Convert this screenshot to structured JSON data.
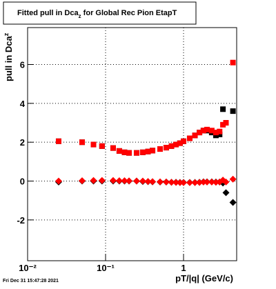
{
  "chart_data": {
    "type": "scatter",
    "title": {
      "main": "Fitted pull in Dca",
      "sub": "z",
      "rest": " for Global Rec Pion EtapT"
    },
    "y_label": {
      "main": "pull in Dca",
      "sub": "z"
    },
    "x_label": "pT/|q| (GeV/c)",
    "footer": "Fri Dec 31 15:47:28 2021",
    "xlog": true,
    "grid": true,
    "xlim": [
      0.01,
      4.8
    ],
    "ylim": [
      -4.1,
      7.9
    ],
    "xticks": [
      {
        "value": 0.01,
        "label": "10⁻²"
      },
      {
        "value": 0.1,
        "label": "10⁻¹"
      },
      1
    ],
    "yticks": [
      -2,
      0,
      2,
      4,
      6
    ],
    "x": [
      0.025,
      0.05,
      0.07,
      0.09,
      0.125,
      0.15,
      0.175,
      0.2,
      0.25,
      0.3,
      0.35,
      0.4,
      0.5,
      0.6,
      0.7,
      0.8,
      0.9,
      1.0,
      1.2,
      1.4,
      1.6,
      1.8,
      2.0,
      2.3,
      2.6,
      2.9,
      3.2,
      3.5,
      4.3
    ],
    "series": [
      {
        "color": "#000000",
        "marker": "square",
        "values": [
          2.05,
          2.0,
          1.88,
          1.8,
          1.7,
          1.55,
          1.48,
          1.45,
          1.45,
          1.48,
          1.52,
          1.57,
          1.65,
          1.72,
          1.8,
          1.88,
          1.95,
          2.05,
          2.2,
          2.35,
          2.5,
          2.6,
          2.6,
          2.5,
          2.35,
          2.4,
          3.7,
          3.0,
          3.6
        ]
      },
      {
        "color": "#000000",
        "marker": "diamond",
        "values": [
          -0.05,
          0.0,
          0.0,
          0.0,
          0.0,
          0.0,
          0.0,
          0.0,
          0.0,
          -0.02,
          -0.03,
          -0.04,
          -0.05,
          -0.05,
          -0.06,
          -0.06,
          -0.07,
          -0.07,
          -0.07,
          -0.07,
          -0.06,
          -0.04,
          -0.04,
          -0.04,
          -0.05,
          -0.05,
          -0.1,
          -0.6,
          -1.1
        ]
      },
      {
        "color": "#ff0000",
        "marker": "square",
        "values": [
          2.05,
          2.0,
          1.88,
          1.8,
          1.7,
          1.55,
          1.48,
          1.45,
          1.45,
          1.48,
          1.52,
          1.57,
          1.65,
          1.72,
          1.8,
          1.88,
          1.95,
          2.05,
          2.2,
          2.35,
          2.5,
          2.6,
          2.65,
          2.6,
          2.5,
          2.55,
          2.9,
          3.0,
          6.1
        ]
      },
      {
        "color": "#ff0000",
        "marker": "diamond",
        "values": [
          0.0,
          0.02,
          0.03,
          0.03,
          0.03,
          0.02,
          0.02,
          0.01,
          0.0,
          0.0,
          -0.02,
          -0.03,
          -0.04,
          -0.05,
          -0.06,
          -0.07,
          -0.08,
          -0.08,
          -0.08,
          -0.08,
          -0.07,
          -0.05,
          -0.05,
          -0.05,
          -0.06,
          -0.05,
          0.05,
          -0.05,
          0.1
        ]
      }
    ]
  }
}
